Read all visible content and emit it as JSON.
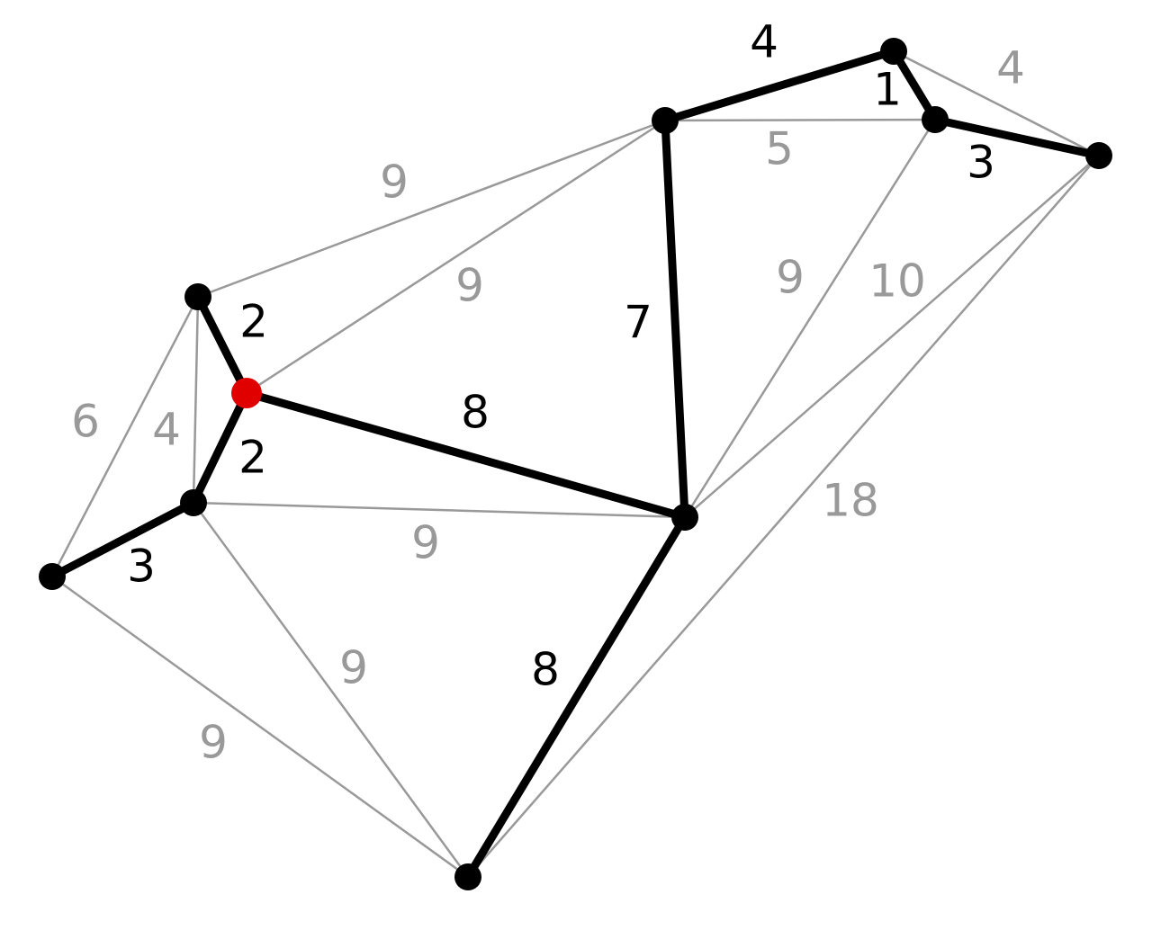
{
  "colors": {
    "tree_edge": "#000000",
    "other_edge": "#999999",
    "node": "#000000",
    "start_node": "#e00000",
    "background": "#ffffff"
  },
  "graph": {
    "nodes": [
      {
        "id": "A",
        "start": false
      },
      {
        "id": "B",
        "start": false
      },
      {
        "id": "C",
        "start": false
      },
      {
        "id": "D",
        "start": false
      },
      {
        "id": "E",
        "start": false
      },
      {
        "id": "F",
        "start": true
      },
      {
        "id": "G",
        "start": false
      },
      {
        "id": "H",
        "start": false
      },
      {
        "id": "I",
        "start": false
      },
      {
        "id": "J",
        "start": false
      }
    ],
    "edges": [
      {
        "from": "E",
        "to": "A",
        "weight": "9",
        "tree": false
      },
      {
        "from": "E",
        "to": "D",
        "weight": "6",
        "tree": false
      },
      {
        "from": "E",
        "to": "G",
        "weight": "4",
        "tree": false
      },
      {
        "from": "F",
        "to": "A",
        "weight": "9",
        "tree": false
      },
      {
        "from": "A",
        "to": "C",
        "weight": "5",
        "tree": false
      },
      {
        "from": "B",
        "to": "J",
        "weight": "4",
        "tree": false
      },
      {
        "from": "H",
        "to": "C",
        "weight": "9",
        "tree": false
      },
      {
        "from": "H",
        "to": "J",
        "weight": "10",
        "tree": false
      },
      {
        "from": "I",
        "to": "J",
        "weight": "18",
        "tree": false
      },
      {
        "from": "G",
        "to": "H",
        "weight": "9",
        "tree": false
      },
      {
        "from": "G",
        "to": "I",
        "weight": "9",
        "tree": false
      },
      {
        "from": "D",
        "to": "I",
        "weight": "9",
        "tree": false
      },
      {
        "from": "A",
        "to": "B",
        "weight": "4",
        "tree": true
      },
      {
        "from": "B",
        "to": "C",
        "weight": "1",
        "tree": true
      },
      {
        "from": "C",
        "to": "J",
        "weight": "3",
        "tree": true
      },
      {
        "from": "A",
        "to": "H",
        "weight": "7",
        "tree": true
      },
      {
        "from": "E",
        "to": "F",
        "weight": "2",
        "tree": true
      },
      {
        "from": "F",
        "to": "G",
        "weight": "2",
        "tree": true
      },
      {
        "from": "F",
        "to": "H",
        "weight": "8",
        "tree": true
      },
      {
        "from": "G",
        "to": "D",
        "weight": "3",
        "tree": true
      },
      {
        "from": "H",
        "to": "I",
        "weight": "8",
        "tree": true
      }
    ]
  }
}
